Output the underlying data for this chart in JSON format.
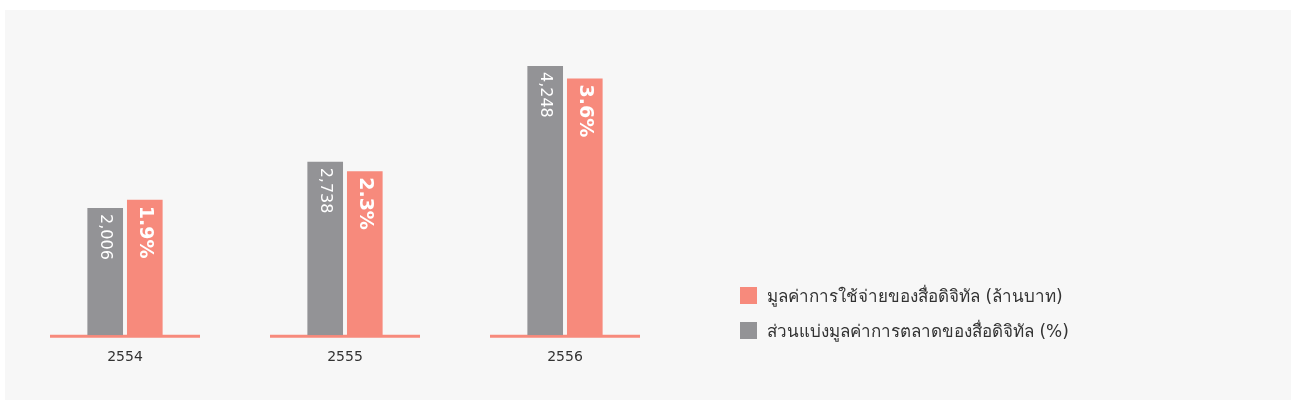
{
  "chart_data": {
    "type": "bar",
    "categories": [
      "2554",
      "2555",
      "2556"
    ],
    "series": [
      {
        "name": "ส่วนแบ่งมูลค่าการตลาดของสื่อดิจิทัล (%)",
        "color": "#939396",
        "values": [
          2006,
          2738,
          4248
        ],
        "value_labels": [
          "2,006",
          "2,738",
          "4,248"
        ]
      },
      {
        "name": "มูลค่าการใช้จ่ายของสื่อดิจิทัล (ล้านบาท)",
        "color": "#f78a7c",
        "values": [
          1.9,
          2.3,
          3.6
        ],
        "value_labels": [
          "1.9%",
          "2.3%",
          "3.6%"
        ],
        "axis": "y2"
      }
    ],
    "legend": "right",
    "grid": false
  }
}
